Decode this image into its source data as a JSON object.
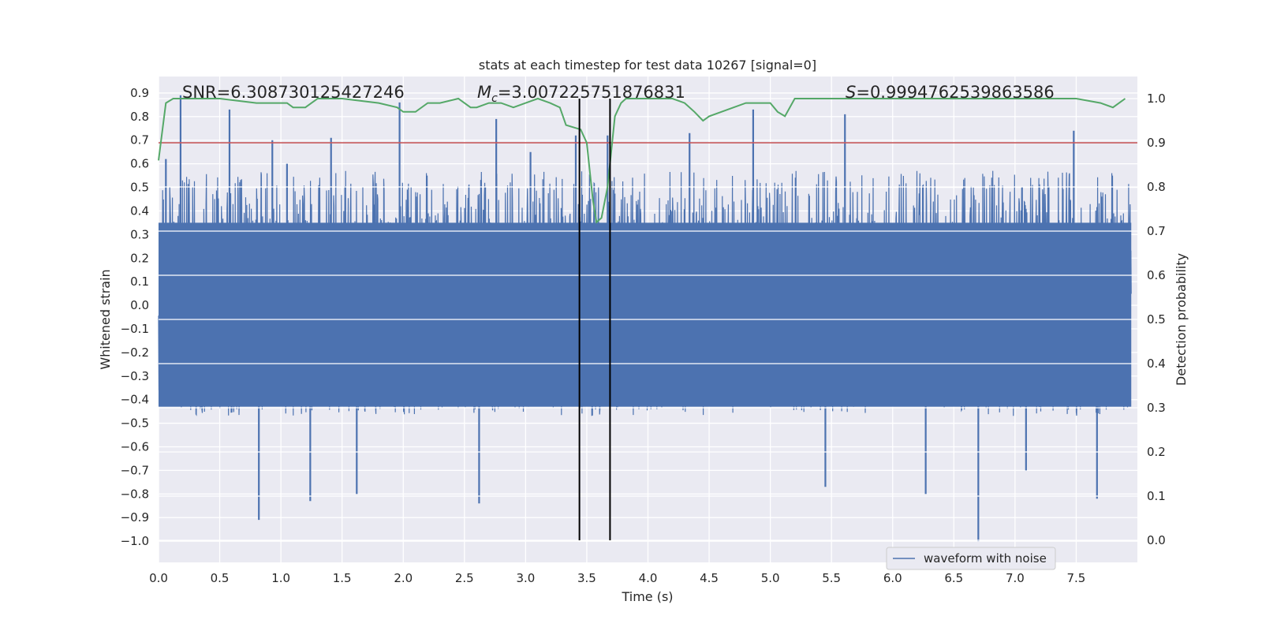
{
  "chart_data": {
    "type": "line",
    "title": "stats at each timestep for test data 10267 [signal=0]",
    "xlabel": "Time (s)",
    "ylabel_left": "Whitened strain",
    "ylabel_right": "Detection probability",
    "xlim": [
      0.0,
      8.0
    ],
    "ylim_left": [
      -1.09,
      0.97
    ],
    "ylim_right": [
      -0.05,
      1.05
    ],
    "x_ticks": [
      0.0,
      0.5,
      1.0,
      1.5,
      2.0,
      2.5,
      3.0,
      3.5,
      4.0,
      4.5,
      5.0,
      5.5,
      6.0,
      6.5,
      7.0,
      7.5
    ],
    "x_tick_labels": [
      "0.0",
      "0.5",
      "1.0",
      "1.5",
      "2.0",
      "2.5",
      "3.0",
      "3.5",
      "4.0",
      "4.5",
      "5.0",
      "5.5",
      "6.0",
      "6.5",
      "7.0",
      "7.5"
    ],
    "y_left_ticks": [
      -1.0,
      -0.9,
      -0.8,
      -0.7,
      -0.6,
      -0.5,
      -0.4,
      -0.3,
      -0.2,
      -0.1,
      0.0,
      0.1,
      0.2,
      0.3,
      0.4,
      0.5,
      0.6,
      0.7,
      0.8,
      0.9
    ],
    "y_left_tick_labels": [
      "−1.0",
      "−0.9",
      "−0.8",
      "−0.7",
      "−0.6",
      "−0.5",
      "−0.4",
      "−0.3",
      "−0.2",
      "−0.1",
      "0.0",
      "0.1",
      "0.2",
      "0.3",
      "0.4",
      "0.5",
      "0.6",
      "0.7",
      "0.8",
      "0.9"
    ],
    "y_right_ticks": [
      0.0,
      0.1,
      0.2,
      0.3,
      0.4,
      0.5,
      0.6,
      0.7,
      0.8,
      0.9,
      1.0
    ],
    "y_right_tick_labels": [
      "0.0",
      "0.1",
      "0.2",
      "0.3",
      "0.4",
      "0.5",
      "0.6",
      "0.7",
      "0.8",
      "0.9",
      "1.0"
    ],
    "grid": true,
    "legend": {
      "placement": "bottom-right",
      "entries": [
        "waveform with noise"
      ]
    },
    "annotations": {
      "snr": "SNR=6.308730125427246",
      "chirp_mass_symbol": "M",
      "chirp_mass_subscript": "c",
      "chirp_mass_value": "=3.007225751876831",
      "score_symbol": "S",
      "score_value": "=0.9994762539863586"
    },
    "threshold": {
      "axis": "right",
      "value": 0.9,
      "color": "#c44e52"
    },
    "vertical_markers": [
      3.44,
      3.69
    ],
    "waveform": {
      "name": "waveform with noise",
      "axis": "left",
      "color": "#4c72b0",
      "typical_envelope": [
        -0.45,
        0.55
      ],
      "spikes": [
        {
          "t": 0.18,
          "v": 0.89
        },
        {
          "t": 0.58,
          "v": 0.83
        },
        {
          "t": 0.82,
          "v": -0.91
        },
        {
          "t": 1.24,
          "v": -0.83
        },
        {
          "t": 1.41,
          "v": 0.71
        },
        {
          "t": 1.62,
          "v": -0.8
        },
        {
          "t": 1.97,
          "v": 0.86
        },
        {
          "t": 2.62,
          "v": -0.84
        },
        {
          "t": 2.76,
          "v": 0.79
        },
        {
          "t": 3.41,
          "v": 0.72
        },
        {
          "t": 3.67,
          "v": 0.72
        },
        {
          "t": 4.86,
          "v": 0.83
        },
        {
          "t": 5.45,
          "v": -0.77
        },
        {
          "t": 5.61,
          "v": 0.81
        },
        {
          "t": 6.27,
          "v": -0.8
        },
        {
          "t": 6.7,
          "v": -1.0
        },
        {
          "t": 7.48,
          "v": 0.74
        },
        {
          "t": 7.67,
          "v": -0.82
        },
        {
          "t": 0.06,
          "v": 0.62
        },
        {
          "t": 1.05,
          "v": 0.6
        },
        {
          "t": 4.34,
          "v": 0.73
        },
        {
          "t": 3.04,
          "v": 0.65
        },
        {
          "t": 7.09,
          "v": -0.7
        },
        {
          "t": 0.93,
          "v": 0.7
        }
      ]
    },
    "probability": {
      "axis": "right",
      "color": "#55a868",
      "x": [
        0.0,
        0.06,
        0.12,
        0.2,
        0.5,
        0.8,
        0.95,
        1.0,
        1.05,
        1.1,
        1.15,
        1.2,
        1.25,
        1.3,
        1.5,
        1.8,
        1.95,
        2.0,
        2.1,
        2.2,
        2.3,
        2.45,
        2.55,
        2.6,
        2.7,
        2.8,
        2.9,
        3.0,
        3.1,
        3.2,
        3.28,
        3.33,
        3.45,
        3.5,
        3.55,
        3.58,
        3.62,
        3.67,
        3.73,
        3.78,
        3.82,
        3.9,
        4.0,
        4.2,
        4.3,
        4.38,
        4.45,
        4.5,
        4.6,
        4.7,
        4.8,
        4.9,
        4.95,
        5.0,
        5.06,
        5.12,
        5.2,
        5.5,
        6.0,
        6.5,
        7.0,
        7.5,
        7.7,
        7.8,
        7.9
      ],
      "values": [
        0.86,
        0.99,
        1.0,
        1.0,
        1.0,
        0.99,
        0.99,
        0.99,
        0.99,
        0.98,
        0.98,
        0.98,
        0.99,
        1.0,
        1.0,
        0.99,
        0.98,
        0.97,
        0.97,
        0.99,
        0.99,
        1.0,
        0.98,
        0.98,
        0.99,
        0.99,
        0.98,
        0.99,
        1.0,
        0.99,
        0.98,
        0.94,
        0.93,
        0.9,
        0.77,
        0.72,
        0.73,
        0.8,
        0.96,
        0.99,
        1.0,
        1.0,
        1.0,
        1.0,
        0.99,
        0.97,
        0.95,
        0.96,
        0.97,
        0.98,
        0.99,
        0.99,
        0.99,
        0.99,
        0.97,
        0.96,
        1.0,
        1.0,
        1.0,
        1.0,
        1.0,
        1.0,
        0.99,
        0.98,
        1.0
      ]
    }
  }
}
